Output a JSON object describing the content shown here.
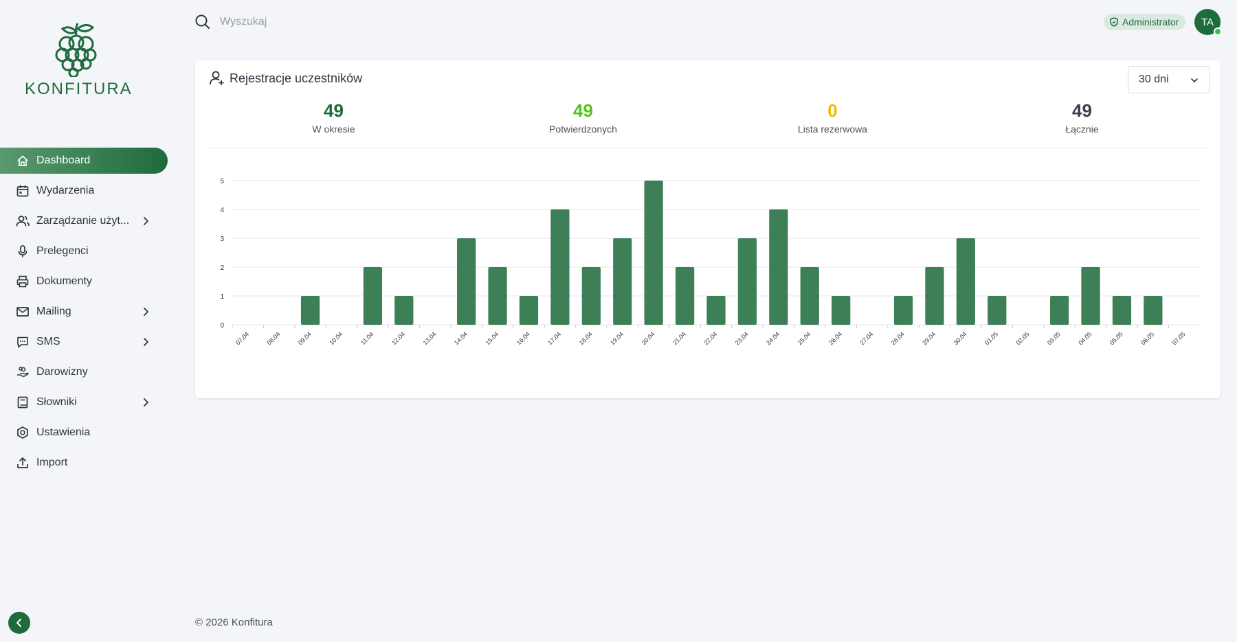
{
  "brand": {
    "name": "KONFITURA",
    "accent": "#1e6b3c"
  },
  "sidebar": {
    "items": [
      {
        "label": "Dashboard",
        "icon": "home-icon",
        "active": true,
        "has_submenu": false
      },
      {
        "label": "Wydarzenia",
        "icon": "calendar-icon",
        "active": false,
        "has_submenu": false
      },
      {
        "label": "Zarządzanie użyt...",
        "icon": "users-icon",
        "active": false,
        "has_submenu": true
      },
      {
        "label": "Prelegenci",
        "icon": "microphone-icon",
        "active": false,
        "has_submenu": false
      },
      {
        "label": "Dokumenty",
        "icon": "printer-icon",
        "active": false,
        "has_submenu": false
      },
      {
        "label": "Mailing",
        "icon": "mail-icon",
        "active": false,
        "has_submenu": true
      },
      {
        "label": "SMS",
        "icon": "message-icon",
        "active": false,
        "has_submenu": true
      },
      {
        "label": "Darowizny",
        "icon": "donation-hand-icon",
        "active": false,
        "has_submenu": false
      },
      {
        "label": "Słowniki",
        "icon": "book-icon",
        "active": false,
        "has_submenu": true
      },
      {
        "label": "Ustawienia",
        "icon": "settings-hex-icon",
        "active": false,
        "has_submenu": false
      },
      {
        "label": "Import",
        "icon": "upload-icon",
        "active": false,
        "has_submenu": false
      }
    ]
  },
  "topbar": {
    "search_placeholder": "Wyszukaj",
    "role_badge": "Administrator",
    "avatar_initials": "TA"
  },
  "card": {
    "title": "Rejestracje uczestników",
    "range_select": "30 dni",
    "stats": [
      {
        "value": "49",
        "label": "W okresie",
        "color": "#1e6b3c"
      },
      {
        "value": "49",
        "label": "Potwierdzonych",
        "color": "#52c41a"
      },
      {
        "value": "0",
        "label": "Lista rezerwowa",
        "color": "#f5b800"
      },
      {
        "value": "49",
        "label": "Łącznie",
        "color": "#3a3f4b"
      }
    ]
  },
  "chart_data": {
    "type": "bar",
    "categories": [
      "07.04",
      "08.04",
      "09.04",
      "10.04",
      "11.04",
      "12.04",
      "13.04",
      "14.04",
      "15.04",
      "16.04",
      "17.04",
      "18.04",
      "19.04",
      "20.04",
      "21.04",
      "22.04",
      "23.04",
      "24.04",
      "25.04",
      "26.04",
      "27.04",
      "28.04",
      "29.04",
      "30.04",
      "01.05",
      "02.05",
      "03.05",
      "04.05",
      "05.05",
      "06.05",
      "07.05"
    ],
    "values": [
      0,
      0,
      1,
      0,
      2,
      1,
      0,
      3,
      2,
      1,
      4,
      2,
      3,
      5,
      2,
      1,
      3,
      4,
      2,
      1,
      0,
      1,
      2,
      3,
      1,
      0,
      1,
      2,
      1,
      1,
      0
    ],
    "yticks": [
      0,
      1,
      2,
      3,
      4,
      5
    ],
    "ylim": [
      0,
      5
    ],
    "grid": true,
    "bar_color": "#3d7f56"
  },
  "footer": {
    "text": "© 2026 Konfitura"
  }
}
